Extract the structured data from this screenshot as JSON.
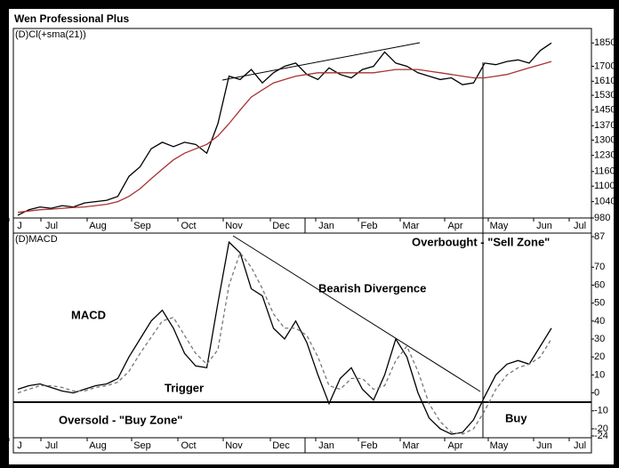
{
  "window_title": "Wen Professional Plus",
  "chart_data": [
    {
      "type": "line",
      "title": "(D)Cl(+sma(21))",
      "log_scale": true,
      "xlim": [
        0,
        13
      ],
      "xticks": [
        {
          "value": 0.14,
          "label": "J"
        },
        {
          "value": 0.86,
          "label": "Jul"
        },
        {
          "value": 1.9,
          "label": "Aug"
        },
        {
          "value": 2.9,
          "label": "Sep"
        },
        {
          "value": 3.94,
          "label": "Oct"
        },
        {
          "value": 4.96,
          "label": "Nov"
        },
        {
          "value": 6.02,
          "label": "Dec"
        },
        {
          "value": 7.04,
          "label": "Jan"
        },
        {
          "value": 8.0,
          "label": "Feb"
        },
        {
          "value": 8.94,
          "label": "Mar"
        },
        {
          "value": 9.94,
          "label": "Apr"
        },
        {
          "value": 10.92,
          "label": "May"
        },
        {
          "value": 11.94,
          "label": "Jun"
        },
        {
          "value": 12.74,
          "label": "Jul"
        }
      ],
      "ylim": [
        980,
        1950
      ],
      "yticks": [
        1850,
        1700,
        1610,
        1530,
        1450,
        1370,
        1300,
        1230,
        1160,
        1100,
        1040,
        980
      ],
      "x": [
        0.1,
        0.35,
        0.6,
        0.85,
        1.1,
        1.35,
        1.6,
        1.85,
        2.1,
        2.35,
        2.6,
        2.85,
        3.1,
        3.35,
        3.6,
        3.85,
        4.1,
        4.35,
        4.6,
        4.85,
        5.1,
        5.35,
        5.6,
        5.85,
        6.1,
        6.35,
        6.6,
        6.85,
        7.1,
        7.35,
        7.6,
        7.85,
        8.1,
        8.35,
        8.6,
        8.85,
        9.1,
        9.35,
        9.6,
        9.85,
        10.1,
        10.35,
        10.6,
        10.85,
        11.1,
        11.35,
        11.6,
        11.85,
        12.1
      ],
      "series": [
        {
          "color": "#000000",
          "values": [
            990,
            1010,
            1020,
            1015,
            1025,
            1020,
            1035,
            1040,
            1045,
            1060,
            1140,
            1180,
            1260,
            1290,
            1270,
            1290,
            1280,
            1240,
            1380,
            1640,
            1620,
            1680,
            1600,
            1660,
            1700,
            1720,
            1650,
            1620,
            1690,
            1650,
            1630,
            1680,
            1700,
            1790,
            1720,
            1700,
            1660,
            1640,
            1620,
            1630,
            1590,
            1600,
            1720,
            1710,
            1730,
            1740,
            1720,
            1800,
            1850
          ]
        },
        {
          "color": "#a83232",
          "values": [
            1000,
            1005,
            1010,
            1012,
            1015,
            1018,
            1020,
            1025,
            1030,
            1040,
            1060,
            1090,
            1130,
            1170,
            1210,
            1240,
            1260,
            1280,
            1320,
            1380,
            1450,
            1520,
            1560,
            1600,
            1620,
            1640,
            1650,
            1660,
            1660,
            1660,
            1660,
            1660,
            1660,
            1670,
            1680,
            1680,
            1680,
            1670,
            1660,
            1650,
            1640,
            1630,
            1630,
            1640,
            1650,
            1670,
            1690,
            1710,
            1730
          ]
        }
      ]
    },
    {
      "type": "line",
      "title": "(D)MACD",
      "xlim": [
        0,
        13
      ],
      "xticks": [
        {
          "value": 0.14,
          "label": "J"
        },
        {
          "value": 0.86,
          "label": "Jul"
        },
        {
          "value": 1.9,
          "label": "Aug"
        },
        {
          "value": 2.9,
          "label": "Sep"
        },
        {
          "value": 3.94,
          "label": "Oct"
        },
        {
          "value": 4.96,
          "label": "Nov"
        },
        {
          "value": 6.02,
          "label": "Dec"
        },
        {
          "value": 7.04,
          "label": "Jan"
        },
        {
          "value": 8.0,
          "label": "Feb"
        },
        {
          "value": 8.94,
          "label": "Mar"
        },
        {
          "value": 9.94,
          "label": "Apr"
        },
        {
          "value": 10.92,
          "label": "May"
        },
        {
          "value": 11.94,
          "label": "Jun"
        },
        {
          "value": 12.74,
          "label": "Jul"
        }
      ],
      "ylim": [
        -24,
        87
      ],
      "yticks": [
        87,
        70,
        60,
        50,
        40,
        30,
        20,
        10,
        0,
        -10,
        -20,
        -24
      ],
      "x": [
        0.1,
        0.35,
        0.6,
        0.85,
        1.1,
        1.35,
        1.6,
        1.85,
        2.1,
        2.35,
        2.6,
        2.85,
        3.1,
        3.35,
        3.6,
        3.85,
        4.1,
        4.35,
        4.6,
        4.85,
        5.1,
        5.35,
        5.6,
        5.85,
        6.1,
        6.35,
        6.6,
        6.85,
        7.1,
        7.35,
        7.6,
        7.85,
        8.1,
        8.35,
        8.6,
        8.85,
        9.1,
        9.35,
        9.6,
        9.85,
        10.1,
        10.35,
        10.6,
        10.85,
        11.1,
        11.35,
        11.6,
        11.85,
        12.1
      ],
      "series": [
        {
          "color": "#000000",
          "values": [
            2,
            4,
            5,
            3,
            1,
            0,
            2,
            4,
            5,
            8,
            20,
            30,
            40,
            46,
            36,
            22,
            15,
            14,
            50,
            84,
            78,
            58,
            54,
            36,
            30,
            40,
            28,
            10,
            -6,
            8,
            14,
            2,
            -4,
            10,
            30,
            20,
            0,
            -14,
            -20,
            -23,
            -22,
            -15,
            -2,
            10,
            16,
            18,
            16,
            26,
            36
          ]
        },
        {
          "color": "#777777",
          "dashed": true,
          "values": [
            0,
            2,
            4,
            4,
            3,
            1,
            1,
            3,
            4,
            6,
            12,
            22,
            31,
            40,
            42,
            32,
            22,
            16,
            24,
            60,
            78,
            70,
            58,
            44,
            36,
            36,
            32,
            20,
            4,
            2,
            8,
            8,
            2,
            4,
            18,
            26,
            12,
            -6,
            -16,
            -22,
            -23,
            -20,
            -10,
            2,
            10,
            14,
            16,
            20,
            30
          ]
        }
      ],
      "annotations": [
        "MACD",
        "Trigger",
        "Bearish Divergence",
        "Overbought - \"Sell Zone\"",
        "Oversold - \"Buy Zone\"",
        "Buy"
      ]
    }
  ]
}
